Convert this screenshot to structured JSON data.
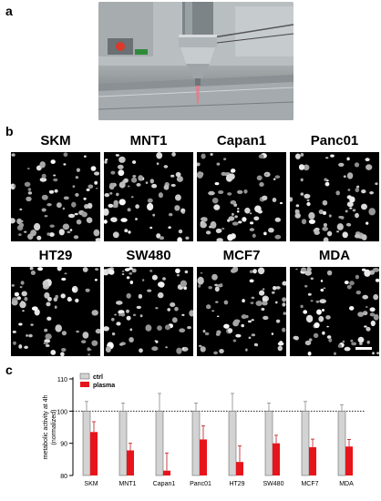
{
  "panels": {
    "a": "a",
    "b": "b",
    "c": "c"
  },
  "micrographs": [
    {
      "name": "SKM"
    },
    {
      "name": "MNT1"
    },
    {
      "name": "Capan1"
    },
    {
      "name": "Panc01"
    },
    {
      "name": "HT29"
    },
    {
      "name": "SW480"
    },
    {
      "name": "MCF7"
    },
    {
      "name": "MDA"
    }
  ],
  "chart_data": {
    "type": "bar",
    "categories": [
      "SKM",
      "MNT1",
      "Capan1",
      "Panc01",
      "HT29",
      "SW480",
      "MCF7",
      "MDA"
    ],
    "series": [
      {
        "name": "ctrl",
        "color": "#d3d3d3",
        "values": [
          100,
          100,
          100,
          100,
          100,
          100,
          100,
          100
        ],
        "errors": [
          3,
          2.5,
          5.5,
          2.5,
          5.5,
          2.5,
          3,
          2
        ]
      },
      {
        "name": "plasma",
        "color": "#e8141b",
        "values": [
          93.5,
          87.8,
          81.5,
          91.2,
          84.2,
          90,
          88.8,
          89
        ],
        "errors": [
          3.2,
          2.2,
          5.5,
          4.2,
          5,
          2.5,
          2.5,
          2.2
        ]
      }
    ],
    "ylabel": "metabolic activity at 4h\n(normalized)",
    "ylim": [
      80,
      110
    ],
    "yticks": [
      80,
      90,
      100,
      110
    ],
    "reference_line": 100,
    "legend": "top-left"
  }
}
